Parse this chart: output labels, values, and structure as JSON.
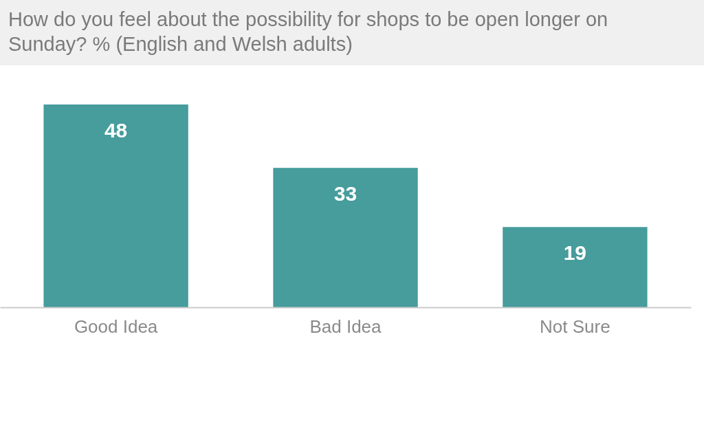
{
  "chart_data": {
    "type": "bar",
    "title": "How do you feel about the possibility for shops to be open longer on Sunday? % (English and Welsh adults)",
    "categories": [
      "Good Idea",
      "Bad Idea",
      "Not Sure"
    ],
    "values": [
      48,
      33,
      19
    ],
    "color": "#479c9c",
    "data_labels": true,
    "tick_labels": "x"
  }
}
